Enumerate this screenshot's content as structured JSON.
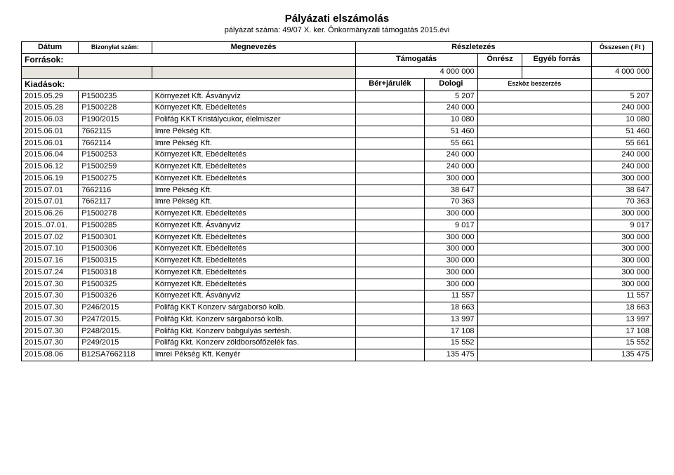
{
  "title": "Pályázati elszámolás",
  "subtitle": "pályázat száma: 49/07 X. ker. Önkormányzati támogatás 2015.évi",
  "headers": {
    "date": "Dátum",
    "doc": "Bizonylat szám:",
    "desc": "Megnevezés",
    "detail": "Részletezés",
    "total": "Összesen ( Ft )",
    "sources": "Források:",
    "tamogatas": "Támogatás",
    "onresz": "Önrész",
    "egyeb": "Egyéb forrás",
    "kiadasok": "Kiadások:",
    "ber": "Bér+járulék",
    "dologi": "Dologi",
    "eszkoz": "Eszköz beszerzés"
  },
  "source_row": {
    "tamogatas": "4 000 000",
    "total": "4 000 000"
  },
  "rows": [
    {
      "date": "2015.05.29",
      "doc": "P1500235",
      "desc": "Környezet Kft.  Ásványvíz",
      "dol": "5 207",
      "sum": "5 207"
    },
    {
      "date": "2015.05.28",
      "doc": "P1500228",
      "desc": "Környezet Kft.  Ebédeltetés",
      "dol": "240 000",
      "sum": "240 000"
    },
    {
      "date": "2015.06.03",
      "doc": "P190/2015",
      "desc": "Polifág KKT   Kristálycukor, élelmiszer",
      "dol": "10 080",
      "sum": "10 080"
    },
    {
      "date": "2015.06.01",
      "doc": "7662115",
      "desc": "Imre Pékség Kft.",
      "dol": "51 460",
      "sum": "51 460"
    },
    {
      "date": "2015.06.01",
      "doc": "7662114",
      "desc": "Imre Pékség Kft.",
      "dol": "55 661",
      "sum": "55 661"
    },
    {
      "date": "2015.06.04",
      "doc": "P1500253",
      "desc": "Környezet Kft.  Ebédeltetés",
      "dol": "240 000",
      "sum": "240 000"
    },
    {
      "date": "2015.06.12",
      "doc": "P1500259",
      "desc": "Környezet Kft.  Ebédeltetés",
      "dol": "240 000",
      "sum": "240 000"
    },
    {
      "date": "2015.06.19",
      "doc": "P1500275",
      "desc": "Környezet Kft.  Ebédeltetés",
      "dol": "300 000",
      "sum": "300 000"
    },
    {
      "date": "2015.07.01",
      "doc": "7662116",
      "desc": "Imre Pékség Kft.",
      "dol": "38 647",
      "sum": "38 647"
    },
    {
      "date": "2015.07.01",
      "doc": "7662117",
      "desc": "Imre Pékség Kft.",
      "dol": "70 363",
      "sum": "70 363"
    },
    {
      "date": "2015.06.26",
      "doc": "P1500278",
      "desc": "Környezet Kft.  Ebédeltetés",
      "dol": "300 000",
      "sum": "300 000"
    },
    {
      "date": "2015..07.01.",
      "doc": "P1500285",
      "desc": "Környezet Kft.  Ásványvíz",
      "dol": "9 017",
      "sum": "9 017"
    },
    {
      "date": "2015.07.02",
      "doc": "P1500301",
      "desc": "Környezet Kft.  Ebédeltetés",
      "dol": "300 000",
      "sum": "300 000"
    },
    {
      "date": "2015.07.10",
      "doc": "P1500306",
      "desc": "Környezet Kft.  Ebédeltetés",
      "dol": "300 000",
      "sum": "300 000"
    },
    {
      "date": "2015.07.16",
      "doc": "P1500315",
      "desc": "Környezet Kft.  Ebédeltetés",
      "dol": "300 000",
      "sum": "300 000"
    },
    {
      "date": "2015.07.24",
      "doc": "P1500318",
      "desc": "Környezet Kft.  Ebédeltetés",
      "dol": "300 000",
      "sum": "300 000"
    },
    {
      "date": "2015.07.30",
      "doc": "P1500325",
      "desc": "Környezet Kft. Ebédeltetés",
      "dol": "300 000",
      "sum": "300 000"
    },
    {
      "date": "2015.07.30",
      "doc": "P1500326",
      "desc": "Környezet Kft. Ásványvíz",
      "dol": "11 557",
      "sum": "11 557"
    },
    {
      "date": "2015.07.30",
      "doc": "P246/2015",
      "desc": "Polifág KKT Konzerv sárgaborsó kolb.",
      "dol": "18 663",
      "sum": "18 663"
    },
    {
      "date": "2015.07.30",
      "doc": "P247/2015.",
      "desc": "Polifág Kkt. Konzerv sárgaborsó kolb.",
      "dol": "13 997",
      "sum": "13 997"
    },
    {
      "date": "2015.07.30",
      "doc": "P248/2015.",
      "desc": "Polifág Kkt. Konzerv babgulyás sertésh.",
      "dol": "17 108",
      "sum": "17 108"
    },
    {
      "date": "2015.07.30",
      "doc": "P249/2015",
      "desc": "Polifág Kkt. Konzerv zöldborsófőzelék fas.",
      "dol": "15 552",
      "sum": "15 552"
    },
    {
      "date": "2015.08.06",
      "doc": "B12SA7662118",
      "desc": "Imrei Pékség Kft. Kenyér",
      "dol": "135 475",
      "sum": "135 475"
    }
  ]
}
